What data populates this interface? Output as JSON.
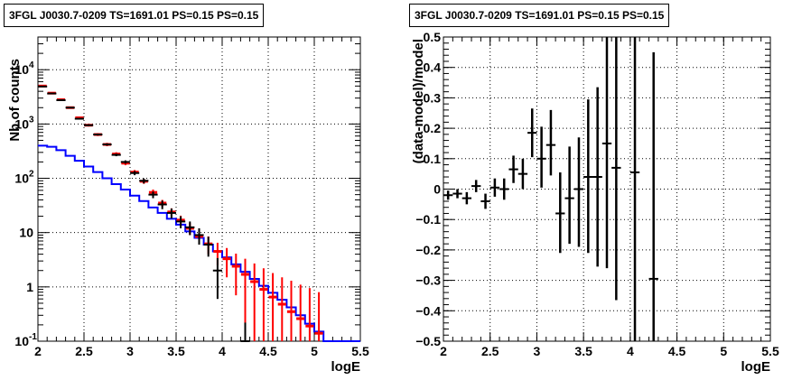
{
  "chart_data": [
    {
      "type": "line",
      "title": "3FGL J0030.7-0209 TS=1691.01 PS=0.15 PS=0.15",
      "xlabel": "logE",
      "ylabel": "Nb of counts",
      "xlim": [
        2,
        5.5
      ],
      "ylim": [
        0.1,
        40000
      ],
      "y_scale": "log",
      "grid": true,
      "x_ticks": [
        "2",
        "2.5",
        "3",
        "3.5",
        "4",
        "4.5",
        "5",
        "5.5"
      ],
      "y_ticks": [
        {
          "value": 0.1,
          "label": "10",
          "sup": "-1"
        },
        {
          "value": 1,
          "label": "1",
          "sup": ""
        },
        {
          "value": 10,
          "label": "10",
          "sup": ""
        },
        {
          "value": 100,
          "label": "10",
          "sup": "2"
        },
        {
          "value": 1000,
          "label": "10",
          "sup": "3"
        },
        {
          "value": 10000,
          "label": "10",
          "sup": "4"
        }
      ],
      "bin_width": 0.1,
      "model_color": "#0000ff",
      "model_fill_color": "#ff0000",
      "data_color": "#000000",
      "model_hist": {
        "x": [
          2.0,
          2.1,
          2.2,
          2.3,
          2.4,
          2.5,
          2.6,
          2.7,
          2.8,
          2.9,
          3.0,
          3.1,
          3.2,
          3.3,
          3.4,
          3.5,
          3.6,
          3.7,
          3.8,
          3.9,
          4.0,
          4.1,
          4.2,
          4.3,
          4.4,
          4.5,
          4.6,
          4.7,
          4.8,
          4.9,
          5.0,
          5.1,
          5.2,
          5.3,
          5.4
        ],
        "y": [
          400,
          380,
          330,
          260,
          210,
          165,
          130,
          100,
          78,
          62,
          48,
          38,
          29,
          23,
          18,
          14,
          10.5,
          8,
          6,
          4.5,
          3.5,
          2.6,
          1.9,
          1.4,
          1.05,
          0.78,
          0.58,
          0.42,
          0.3,
          0.21,
          0.15,
          0.1,
          0.1,
          0.1,
          0.1
        ]
      },
      "model_total": {
        "x": [
          2.05,
          2.15,
          2.25,
          2.35,
          2.45,
          2.55,
          2.65,
          2.75,
          2.85,
          2.95,
          3.05,
          3.15,
          3.25,
          3.35,
          3.45,
          3.55,
          3.65,
          3.75,
          3.85,
          3.95,
          4.05,
          4.15,
          4.25,
          4.35,
          4.45,
          4.55,
          4.65,
          4.75,
          4.85,
          4.95,
          5.05
        ],
        "y": [
          5000,
          3700,
          2800,
          2000,
          1300,
          950,
          640,
          420,
          280,
          190,
          130,
          88,
          55,
          35,
          24,
          17,
          12,
          8.5,
          6.2,
          4.5,
          3.3,
          2.4,
          1.7,
          1.25,
          0.9,
          0.65,
          0.48,
          0.35,
          0.26,
          0.19,
          0.14
        ],
        "err_low": [
          4860,
          3580,
          2700,
          1920,
          1240,
          900,
          600,
          390,
          258,
          174,
          118,
          79,
          48,
          30,
          20,
          13.6,
          9,
          6,
          4,
          2.5,
          1.5,
          0.7,
          0.2,
          0.1,
          0.1,
          0.1,
          0.1,
          0.1,
          0.1,
          0.1,
          0.1
        ],
        "err_high": [
          5140,
          3820,
          2900,
          2080,
          1360,
          1000,
          680,
          450,
          302,
          206,
          142,
          97,
          62,
          40,
          28,
          20.5,
          15,
          11,
          8.5,
          6.5,
          5.2,
          4.1,
          3.3,
          2.7,
          2.2,
          1.8,
          1.5,
          1.3,
          1.1,
          0.95,
          0.8
        ]
      },
      "data_points": {
        "x": [
          2.05,
          2.15,
          2.25,
          2.35,
          2.45,
          2.55,
          2.65,
          2.75,
          2.85,
          2.95,
          3.05,
          3.15,
          3.25,
          3.35,
          3.45,
          3.55,
          3.65,
          3.75,
          3.85,
          3.95,
          4.25
        ],
        "y": [
          4900,
          3650,
          2750,
          2000,
          1250,
          950,
          640,
          420,
          270,
          200,
          125,
          90,
          50,
          33,
          23,
          16,
          12.5,
          9,
          6,
          2,
          0.1
        ],
        "err_low": [
          4830,
          3590,
          2700,
          1955,
          1215,
          920,
          615,
          400,
          255,
          186,
          114,
          80.5,
          43,
          27,
          18.2,
          12,
          9,
          6,
          3.6,
          0.6,
          0.1
        ],
        "err_high": [
          4970,
          3710,
          2800,
          2045,
          1285,
          980,
          665,
          440,
          285,
          214,
          136,
          99.5,
          57,
          39,
          27.8,
          20,
          16,
          12,
          8.4,
          3.4,
          0.22
        ]
      }
    },
    {
      "type": "scatter",
      "title": "3FGL J0030.7-0209 TS=1691.01 PS=0.15 PS=0.15",
      "xlabel": "logE",
      "ylabel": "(data-model)/model",
      "xlim": [
        2,
        5.5
      ],
      "ylim": [
        -0.5,
        0.5
      ],
      "grid": true,
      "x_ticks": [
        "2",
        "2.5",
        "3",
        "3.5",
        "4",
        "4.5",
        "5",
        "5.5"
      ],
      "y_ticks": [
        "−0.5",
        "−0.4",
        "−0.3",
        "−0.2",
        "−0.1",
        "0",
        "0.1",
        "0.2",
        "0.3",
        "0.4",
        "0.5"
      ],
      "y_tick_values": [
        -0.5,
        -0.4,
        -0.3,
        -0.2,
        -0.1,
        0,
        0.1,
        0.2,
        0.3,
        0.4,
        0.5
      ],
      "bin_width": 0.1,
      "data_color": "#000000",
      "points": {
        "x": [
          2.05,
          2.15,
          2.25,
          2.35,
          2.45,
          2.55,
          2.65,
          2.75,
          2.85,
          2.95,
          3.05,
          3.15,
          3.25,
          3.35,
          3.45,
          3.55,
          3.65,
          3.75,
          3.85,
          4.05,
          4.25
        ],
        "y": [
          -0.02,
          -0.015,
          -0.03,
          0.01,
          -0.04,
          0.005,
          0.0,
          0.065,
          0.05,
          0.185,
          0.1,
          0.145,
          -0.08,
          -0.03,
          0.0,
          0.04,
          0.04,
          0.15,
          0.07,
          0.055,
          -0.295
        ],
        "err_low": [
          -0.035,
          -0.03,
          -0.05,
          -0.01,
          -0.065,
          -0.025,
          -0.035,
          0.02,
          0.0,
          0.105,
          0.005,
          0.045,
          -0.21,
          -0.18,
          -0.19,
          -0.21,
          -0.255,
          -0.26,
          -0.365,
          -0.5,
          -0.5
        ],
        "err_high": [
          -0.005,
          0.0,
          -0.01,
          0.03,
          -0.015,
          0.035,
          0.035,
          0.11,
          0.1,
          0.265,
          0.205,
          0.26,
          0.055,
          0.14,
          0.17,
          0.295,
          0.335,
          0.5,
          0.5,
          0.5,
          0.45
        ]
      }
    }
  ]
}
